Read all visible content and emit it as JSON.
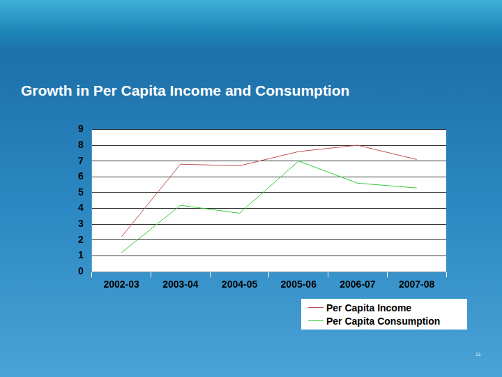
{
  "chart_data": {
    "type": "line",
    "title": "Growth in Per Capita Income and Consumption",
    "categories": [
      "2002-03",
      "2003-04",
      "2004-05",
      "2005-06",
      "2006-07",
      "2007-08"
    ],
    "series": [
      {
        "name": "Per Capita Income",
        "color": "#c0504d",
        "line_style": "solid",
        "values": [
          2.2,
          6.8,
          6.7,
          7.6,
          8.0,
          7.1
        ]
      },
      {
        "name": "Per Capita Consumption",
        "color": "#33cc33",
        "line_style": "solid",
        "values": [
          1.2,
          4.2,
          3.7,
          7.0,
          5.6,
          5.3
        ]
      }
    ],
    "ylim": [
      0,
      9
    ],
    "yticks": [
      0,
      1,
      2,
      3,
      4,
      5,
      6,
      7,
      8,
      9
    ],
    "grid": true,
    "legend": "lower right"
  },
  "slide": {
    "page_number": "11"
  }
}
